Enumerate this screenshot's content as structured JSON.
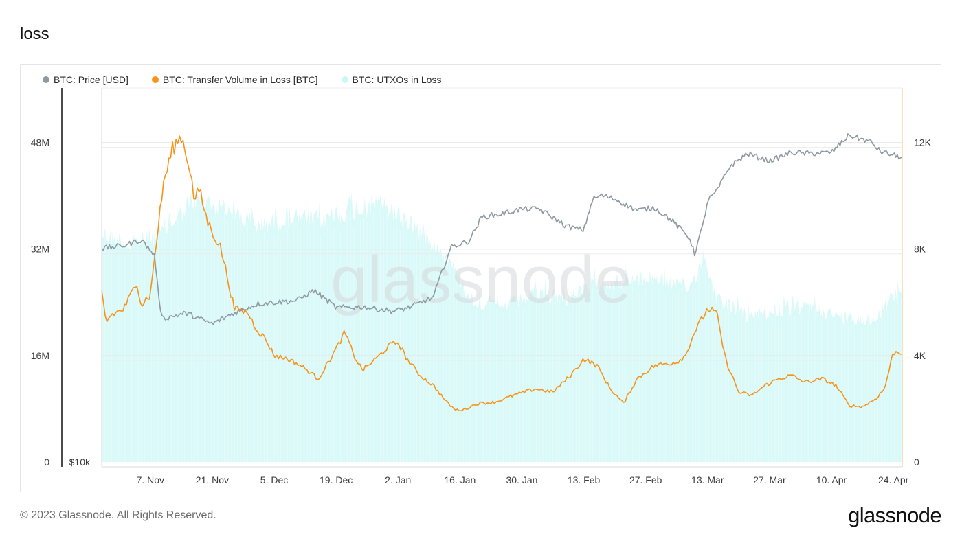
{
  "page": {
    "title": "loss"
  },
  "legend": [
    {
      "label": "BTC: Price [USD]",
      "color": "#8e9aa0"
    },
    {
      "label": "BTC: Transfer Volume in Loss [BTC]",
      "color": "#f7931a"
    },
    {
      "label": "BTC: UTXOs in Loss",
      "color": "#ccf7f7"
    }
  ],
  "footer": {
    "copyright": "© 2023 Glassnode. All Rights Reserved.",
    "logo": "glassnode"
  },
  "watermark": "glassnode",
  "chart_data": {
    "type": "line",
    "title": "loss",
    "x_ticks": [
      "7. Nov",
      "21. Nov",
      "5. Dec",
      "19. Dec",
      "2. Jan",
      "16. Jan",
      "30. Jan",
      "13. Feb",
      "27. Feb",
      "13. Mar",
      "27. Mar",
      "10. Apr",
      "24. Apr"
    ],
    "x_range": [
      "2022-10-27",
      "2023-04-26"
    ],
    "grid": true,
    "legend_position": "top-left",
    "left_axis": {
      "ticks": [
        "0",
        "16M",
        "32M",
        "48M"
      ],
      "range": [
        0,
        56000000
      ]
    },
    "price_axis": {
      "ticks": [
        "$10k"
      ],
      "scale": "log"
    },
    "right_axis": {
      "ticks": [
        "0",
        "4K",
        "8K",
        "12K"
      ],
      "range": [
        0,
        14000
      ]
    },
    "series": [
      {
        "name": "BTC: Price [USD]",
        "type": "line",
        "axis": "price",
        "color": "#8e9aa0",
        "x": [
          "2022-10-27",
          "2022-11-01",
          "2022-11-05",
          "2022-11-08",
          "2022-11-09",
          "2022-11-10",
          "2022-11-15",
          "2022-11-21",
          "2022-11-25",
          "2022-12-01",
          "2022-12-05",
          "2022-12-10",
          "2022-12-14",
          "2022-12-19",
          "2022-12-25",
          "2023-01-01",
          "2023-01-05",
          "2023-01-10",
          "2023-01-14",
          "2023-01-18",
          "2023-01-21",
          "2023-01-25",
          "2023-01-30",
          "2023-02-03",
          "2023-02-09",
          "2023-02-13",
          "2023-02-15",
          "2023-02-17",
          "2023-02-20",
          "2023-02-25",
          "2023-03-01",
          "2023-03-05",
          "2023-03-09",
          "2023-03-10",
          "2023-03-12",
          "2023-03-13",
          "2023-03-15",
          "2023-03-18",
          "2023-03-22",
          "2023-03-27",
          "2023-04-01",
          "2023-04-05",
          "2023-04-10",
          "2023-04-14",
          "2023-04-19",
          "2023-04-21",
          "2023-04-26"
        ],
        "y": [
          20500,
          20700,
          21100,
          20000,
          17000,
          16200,
          16500,
          15900,
          16400,
          17000,
          17100,
          17200,
          17800,
          16800,
          16850,
          16600,
          16850,
          17400,
          20600,
          21000,
          22800,
          23000,
          23400,
          23400,
          22100,
          21800,
          24200,
          24500,
          24200,
          23300,
          23500,
          22500,
          21200,
          20100,
          22200,
          24100,
          24800,
          27000,
          28200,
          27500,
          28300,
          28200,
          28300,
          30000,
          29300,
          28400,
          27800
        ]
      },
      {
        "name": "BTC: Transfer Volume in Loss [BTC]",
        "type": "line",
        "axis": "left",
        "color": "#f7931a",
        "x": [
          "2022-10-27",
          "2022-10-28",
          "2022-10-29",
          "2022-11-01",
          "2022-11-04",
          "2022-11-05",
          "2022-11-06",
          "2022-11-07",
          "2022-11-08",
          "2022-11-10",
          "2022-11-12",
          "2022-11-14",
          "2022-11-16",
          "2022-11-17",
          "2022-11-18",
          "2022-11-20",
          "2022-11-23",
          "2022-11-26",
          "2022-11-29",
          "2022-12-01",
          "2022-12-03",
          "2022-12-05",
          "2022-12-08",
          "2022-12-11",
          "2022-12-13",
          "2022-12-15",
          "2022-12-19",
          "2022-12-21",
          "2022-12-23",
          "2022-12-25",
          "2022-12-28",
          "2022-12-31",
          "2023-01-02",
          "2023-01-04",
          "2023-01-07",
          "2023-01-10",
          "2023-01-13",
          "2023-01-15",
          "2023-01-17",
          "2023-01-20",
          "2023-01-24",
          "2023-01-28",
          "2023-02-02",
          "2023-02-06",
          "2023-02-10",
          "2023-02-13",
          "2023-02-16",
          "2023-02-19",
          "2023-02-22",
          "2023-02-25",
          "2023-03-01",
          "2023-03-04",
          "2023-03-06",
          "2023-03-08",
          "2023-03-10",
          "2023-03-13",
          "2023-03-15",
          "2023-03-17",
          "2023-03-20",
          "2023-03-23",
          "2023-03-26",
          "2023-03-29",
          "2023-04-01",
          "2023-04-04",
          "2023-04-08",
          "2023-04-11",
          "2023-04-14",
          "2023-04-17",
          "2023-04-20",
          "2023-04-22",
          "2023-04-24",
          "2023-04-26"
        ],
        "y": [
          25500,
          21000,
          22000,
          23000,
          27000,
          23500,
          24500,
          25000,
          31000,
          42000,
          47000,
          49000,
          44000,
          39000,
          41000,
          36000,
          32000,
          23000,
          22500,
          20000,
          18500,
          16000,
          15500,
          14500,
          13500,
          12500,
          17000,
          19500,
          16000,
          13800,
          15500,
          17500,
          18000,
          15500,
          13000,
          11500,
          9000,
          7800,
          7900,
          8800,
          9000,
          10000,
          11000,
          10500,
          13000,
          15500,
          14500,
          11000,
          8800,
          12500,
          14500,
          14800,
          15000,
          16000,
          19500,
          23000,
          22500,
          15500,
          10500,
          10000,
          11500,
          12500,
          13000,
          12000,
          12500,
          11500,
          8500,
          8300,
          9500,
          11000,
          16500,
          16500
        ]
      },
      {
        "name": "BTC: UTXOs in Loss",
        "type": "area",
        "axis": "right",
        "color": "#ccf7f7",
        "x": [
          "2022-10-27",
          "2022-11-03",
          "2022-11-10",
          "2022-11-17",
          "2022-11-24",
          "2022-12-01",
          "2022-12-08",
          "2022-12-15",
          "2022-12-22",
          "2022-12-29",
          "2023-01-05",
          "2023-01-12",
          "2023-01-19",
          "2023-01-26",
          "2023-02-02",
          "2023-02-09",
          "2023-02-16",
          "2023-02-23",
          "2023-03-02",
          "2023-03-09",
          "2023-03-12",
          "2023-03-15",
          "2023-03-22",
          "2023-03-29",
          "2023-04-05",
          "2023-04-12",
          "2023-04-19",
          "2023-04-26"
        ],
        "y": [
          9000,
          8500,
          9100,
          10300,
          10000,
          9300,
          9600,
          9500,
          9900,
          10100,
          9400,
          8300,
          6300,
          6100,
          6600,
          6400,
          7000,
          7100,
          7200,
          6800,
          8100,
          6500,
          5700,
          5900,
          6100,
          5700,
          5500,
          6900
        ]
      }
    ]
  }
}
